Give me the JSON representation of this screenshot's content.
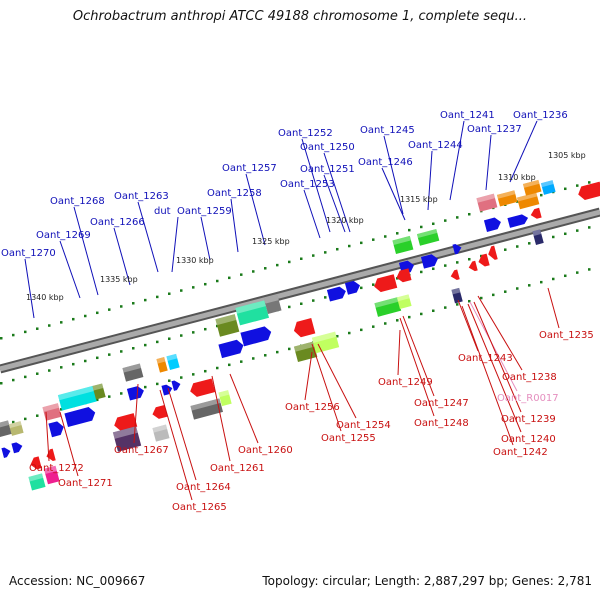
{
  "title": "Ochrobactrum anthropi ATCC 49188 chromosome 1, complete sequ...",
  "footer": {
    "accession": "Accession: NC_009667",
    "summary": "Topology: circular; Length: 2,887,297 bp; Genes: 2,781"
  },
  "ticks": [
    "1305 kbp",
    "1310 kbp",
    "1315 kbp",
    "1320 kbp",
    "1325 kbp",
    "1330 kbp",
    "1335 kbp",
    "1340 kbp"
  ],
  "top_labels": [
    "Oant_1236",
    "Oant_1237",
    "Oant_1241",
    "Oant_1244",
    "Oant_1245",
    "Oant_1246",
    "Oant_1250",
    "Oant_1251",
    "Oant_1252",
    "Oant_1253",
    "Oant_1257",
    "Oant_1258",
    "Oant_1259",
    "Oant_1263",
    "dut",
    "Oant_1266",
    "Oant_1268",
    "Oant_1269",
    "Oant_1270"
  ],
  "bottom_labels": [
    "Oant_1235",
    "Oant_1238",
    "Oant_R0017",
    "Oant_1239",
    "Oant_1240",
    "Oant_1242",
    "Oant_1243",
    "Oant_1247",
    "Oant_1248",
    "Oant_1249",
    "Oant_1254",
    "Oant_1255",
    "Oant_1256",
    "Oant_1260",
    "Oant_1261",
    "Oant_1264",
    "Oant_1265",
    "Oant_1267",
    "Oant_1271",
    "Oant_1272"
  ],
  "colors": {
    "forward_gene": "#1010e0",
    "reverse_gene": "#e01010",
    "forward_label": "#1010b8",
    "reverse_label": "#c81010",
    "rna_label": "#e58fbf",
    "backbone": "#888888",
    "tick": "#1a7a1a"
  }
}
